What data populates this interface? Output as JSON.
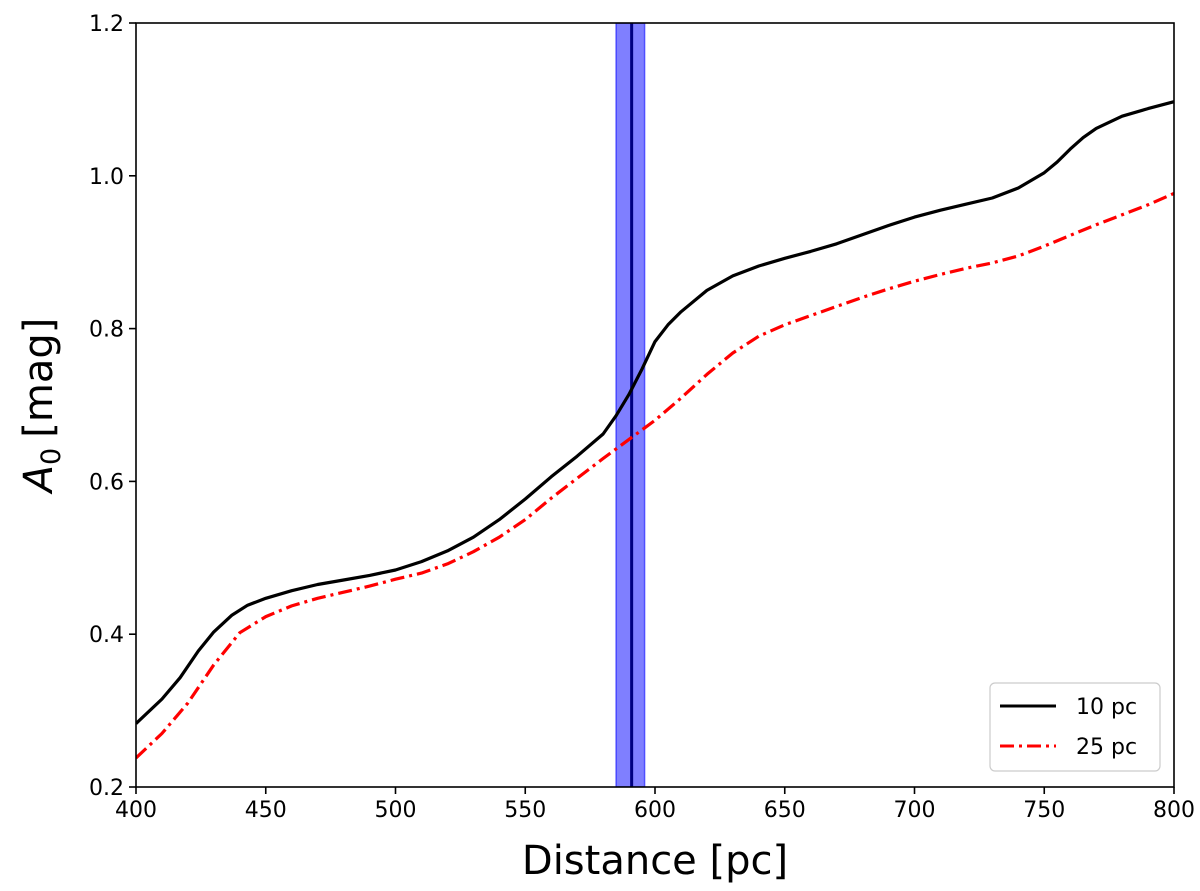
{
  "chart_data": {
    "type": "line",
    "xlabel": "Distance [pc]",
    "ylabel_main": "A",
    "ylabel_sub": "0",
    "ylabel_unit": "[mag]",
    "xlim": [
      400,
      800
    ],
    "ylim": [
      0.2,
      1.2
    ],
    "xticks": [
      400,
      450,
      500,
      550,
      600,
      650,
      700,
      750,
      800
    ],
    "xtick_labels": [
      "400",
      "450",
      "500",
      "550",
      "600",
      "650",
      "700",
      "750",
      "800"
    ],
    "yticks": [
      0.2,
      0.4,
      0.6,
      0.8,
      1.0,
      1.2
    ],
    "ytick_labels": [
      "0.2",
      "0.4",
      "0.6",
      "0.8",
      "1.0",
      "1.2"
    ],
    "grid": false,
    "legend_position": "bottom-right",
    "band": {
      "x_center": 591,
      "x_min": 585,
      "x_max": 596,
      "color": "#0000ff"
    },
    "series": [
      {
        "name": "10 pc",
        "color": "#000000",
        "style": "solid",
        "x": [
          400,
          410,
          417,
          424,
          430,
          437,
          443,
          450,
          460,
          470,
          480,
          490,
          500,
          510,
          520,
          530,
          540,
          550,
          560,
          570,
          580,
          585,
          590,
          595,
          600,
          605,
          610,
          620,
          630,
          640,
          650,
          660,
          670,
          680,
          690,
          700,
          710,
          720,
          730,
          740,
          750,
          755,
          760,
          765,
          770,
          780,
          790,
          800
        ],
        "y": [
          0.283,
          0.315,
          0.343,
          0.378,
          0.403,
          0.425,
          0.438,
          0.447,
          0.457,
          0.465,
          0.471,
          0.477,
          0.484,
          0.495,
          0.509,
          0.527,
          0.55,
          0.577,
          0.606,
          0.633,
          0.662,
          0.686,
          0.714,
          0.747,
          0.783,
          0.805,
          0.822,
          0.85,
          0.869,
          0.882,
          0.892,
          0.901,
          0.911,
          0.923,
          0.935,
          0.946,
          0.955,
          0.963,
          0.971,
          0.984,
          1.004,
          1.018,
          1.035,
          1.05,
          1.062,
          1.078,
          1.088,
          1.097
        ]
      },
      {
        "name": "25 pc",
        "color": "#ff0000",
        "style": "dashdot",
        "x": [
          400,
          410,
          420,
          430,
          440,
          450,
          460,
          470,
          480,
          490,
          500,
          510,
          520,
          530,
          540,
          550,
          560,
          570,
          580,
          590,
          600,
          610,
          620,
          630,
          640,
          650,
          660,
          670,
          680,
          690,
          700,
          710,
          720,
          730,
          740,
          750,
          760,
          770,
          780,
          790,
          800
        ],
        "y": [
          0.238,
          0.27,
          0.31,
          0.36,
          0.402,
          0.423,
          0.437,
          0.447,
          0.455,
          0.463,
          0.472,
          0.48,
          0.492,
          0.508,
          0.527,
          0.55,
          0.578,
          0.604,
          0.63,
          0.655,
          0.68,
          0.709,
          0.74,
          0.768,
          0.79,
          0.805,
          0.817,
          0.829,
          0.841,
          0.852,
          0.862,
          0.871,
          0.879,
          0.886,
          0.895,
          0.908,
          0.922,
          0.936,
          0.949,
          0.962,
          0.977
        ]
      }
    ]
  }
}
